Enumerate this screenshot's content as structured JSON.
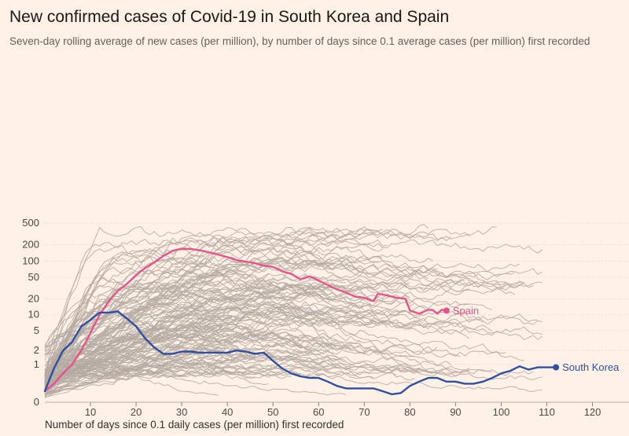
{
  "chart_data": {
    "type": "line",
    "title": "New confirmed cases of Covid-19 in South Korea and Spain",
    "subtitle": "Seven-day rolling average of new cases (per million), by number of days since 0.1 average cases (per million) first recorded",
    "xlabel": "Number of days since 0.1 daily cases (per million) first recorded",
    "ylabel": "",
    "y_scale": "log",
    "xlim": [
      0,
      128
    ],
    "x_ticks": [
      10,
      20,
      30,
      40,
      50,
      60,
      70,
      80,
      90,
      100,
      110,
      120
    ],
    "y_ticks": [
      0,
      1,
      2,
      5,
      10,
      20,
      50,
      100,
      200,
      500
    ],
    "grid": "horizontal",
    "colors": {
      "background": "#fff1e5",
      "spain": "#e8538a",
      "south_korea": "#2f4fa0",
      "other_countries": "#b4aaa2",
      "grid": "#e2d5c9"
    },
    "highlighted_series": [
      {
        "name": "Spain",
        "color": "#e8538a",
        "x": [
          0,
          2,
          4,
          6,
          8,
          10,
          12,
          14,
          16,
          18,
          20,
          22,
          24,
          26,
          28,
          30,
          32,
          34,
          36,
          38,
          40,
          42,
          44,
          46,
          48,
          50,
          52,
          54,
          56,
          58,
          60,
          62,
          64,
          66,
          68,
          70,
          72,
          73,
          75,
          77,
          79,
          80,
          82,
          84,
          85,
          86,
          87,
          88
        ],
        "y": [
          0.15,
          0.3,
          0.6,
          1.0,
          2.0,
          4.5,
          10,
          18,
          28,
          38,
          55,
          75,
          95,
          125,
          155,
          170,
          168,
          158,
          145,
          132,
          118,
          105,
          98,
          92,
          82,
          78,
          65,
          58,
          46,
          52,
          44,
          36,
          30,
          26,
          22,
          21,
          18,
          25,
          23,
          21,
          20,
          12,
          10.5,
          12.5,
          12.3,
          10.5,
          12.5,
          12
        ]
      },
      {
        "name": "South Korea",
        "color": "#2f4fa0",
        "x": [
          0,
          2,
          4,
          6,
          8,
          10,
          12,
          14,
          16,
          18,
          20,
          22,
          24,
          26,
          28,
          30,
          32,
          34,
          36,
          38,
          40,
          42,
          44,
          46,
          48,
          50,
          52,
          54,
          56,
          58,
          60,
          62,
          64,
          66,
          68,
          70,
          72,
          74,
          76,
          78,
          80,
          82,
          84,
          86,
          88,
          90,
          92,
          94,
          96,
          98,
          100,
          102,
          104,
          106,
          108,
          110,
          112
        ],
        "y": [
          0.15,
          0.8,
          2.0,
          3.0,
          6.0,
          8.0,
          11,
          11,
          11.5,
          8.5,
          6.0,
          3.5,
          2.3,
          1.7,
          1.7,
          1.9,
          1.9,
          1.8,
          1.8,
          1.8,
          1.8,
          2.0,
          1.9,
          1.7,
          1.8,
          1.2,
          0.8,
          0.6,
          0.5,
          0.45,
          0.45,
          0.35,
          0.25,
          0.2,
          0.2,
          0.2,
          0.2,
          0.15,
          0.1,
          0.12,
          0.25,
          0.35,
          0.45,
          0.45,
          0.35,
          0.35,
          0.3,
          0.3,
          0.35,
          0.45,
          0.6,
          0.7,
          0.9,
          0.75,
          0.85,
          0.85,
          0.85
        ]
      }
    ],
    "annotations": [
      {
        "series": "Spain",
        "text": "Spain"
      },
      {
        "series": "South Korea",
        "text": "South Korea"
      }
    ]
  }
}
